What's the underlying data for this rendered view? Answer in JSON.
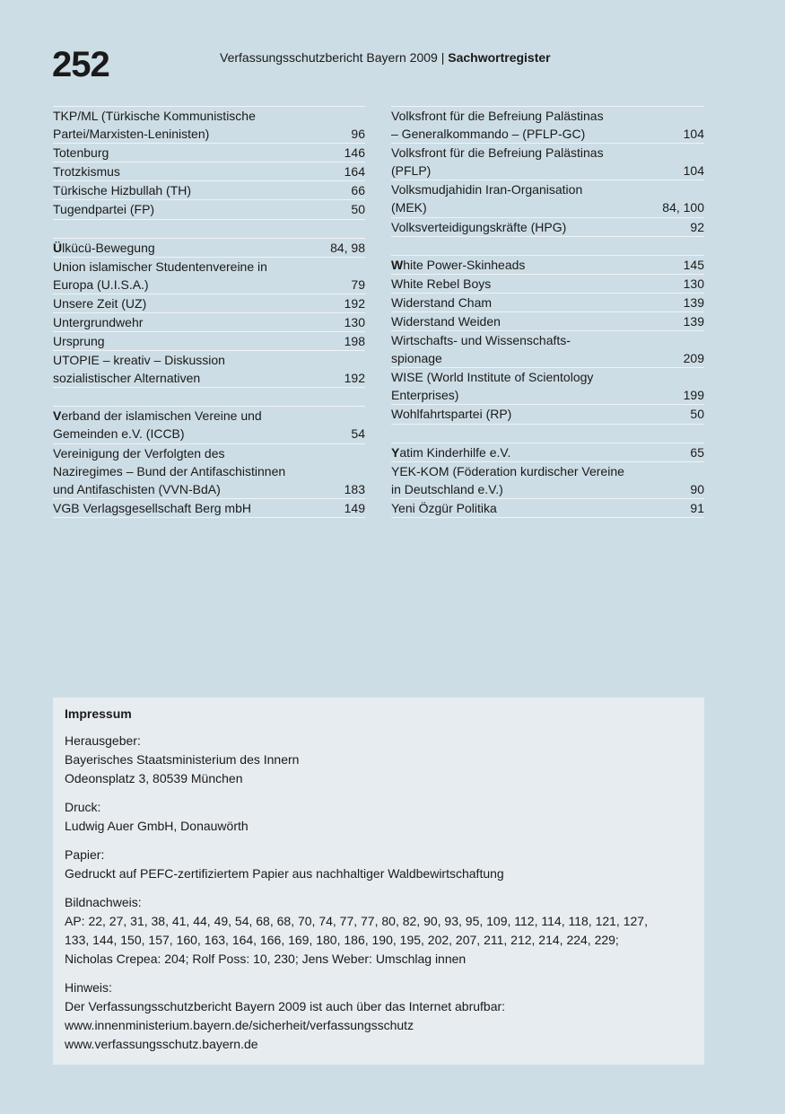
{
  "header": {
    "page_number": "252",
    "title": "Verfassungsschutzbericht Bayern 2009",
    "separator": " | ",
    "section": "Sachwortregister"
  },
  "left_column": [
    {
      "lines": [
        "TKP/ML (Türkische Kommunistische",
        "Partei/Marxisten-Leninisten)"
      ],
      "pages": "96"
    },
    {
      "lines": [
        "Totenburg"
      ],
      "pages": "146"
    },
    {
      "lines": [
        "Trotzkismus"
      ],
      "pages": "164"
    },
    {
      "lines": [
        "Türkische Hizbullah (TH)"
      ],
      "pages": "66"
    },
    {
      "lines": [
        "Tugendpartei (FP)"
      ],
      "pages": "50"
    },
    {
      "spacer": true
    },
    {
      "lead": "Ü",
      "lines": [
        "lkücü-Bewegung"
      ],
      "pages": "84, 98"
    },
    {
      "lines": [
        "Union islamischer Studentenvereine in",
        "Europa (U.I.S.A.)"
      ],
      "pages": "79"
    },
    {
      "lines": [
        "Unsere Zeit (UZ)"
      ],
      "pages": "192"
    },
    {
      "lines": [
        "Untergrundwehr"
      ],
      "pages": "130"
    },
    {
      "lines": [
        "Ursprung"
      ],
      "pages": "198"
    },
    {
      "lines": [
        "UTOPIE – kreativ – Diskussion",
        "sozialistischer Alternativen"
      ],
      "pages": "192"
    },
    {
      "spacer": true
    },
    {
      "lead": "V",
      "lines": [
        "erband der islamischen Vereine und",
        "Gemeinden e.V. (ICCB)"
      ],
      "pages": "54"
    },
    {
      "lines": [
        "Vereinigung der Verfolgten des",
        "Naziregimes – Bund der Antifaschistinnen",
        "und Antifaschisten (VVN-BdA)"
      ],
      "pages": "183"
    },
    {
      "lines": [
        "VGB Verlagsgesellschaft Berg mbH"
      ],
      "pages": "149"
    }
  ],
  "right_column": [
    {
      "lines": [
        "Volksfront für die Befreiung Palästinas",
        "– Generalkommando – (PFLP-GC)"
      ],
      "pages": "104"
    },
    {
      "lines": [
        "Volksfront für die Befreiung Palästinas",
        "(PFLP)"
      ],
      "pages": "104"
    },
    {
      "lines": [
        "Volksmudjahidin Iran-Organisation",
        "(MEK)"
      ],
      "pages": "84, 100"
    },
    {
      "lines": [
        "Volksverteidigungskräfte (HPG)"
      ],
      "pages": "92"
    },
    {
      "spacer": true
    },
    {
      "lead": "W",
      "lines": [
        "hite Power-Skinheads"
      ],
      "pages": "145"
    },
    {
      "lines": [
        "White Rebel Boys"
      ],
      "pages": "130"
    },
    {
      "lines": [
        "Widerstand Cham"
      ],
      "pages": "139"
    },
    {
      "lines": [
        "Widerstand Weiden"
      ],
      "pages": "139"
    },
    {
      "lines": [
        "Wirtschafts- und Wissenschafts-",
        "spionage"
      ],
      "pages": "209"
    },
    {
      "lines": [
        "WISE (World Institute of Scientology",
        "Enterprises)"
      ],
      "pages": "199"
    },
    {
      "lines": [
        "Wohlfahrtspartei (RP)"
      ],
      "pages": "50"
    },
    {
      "spacer": true
    },
    {
      "lead": "Y",
      "lines": [
        "atim Kinderhilfe e.V."
      ],
      "pages": "65"
    },
    {
      "lines": [
        "YEK-KOM (Föderation kurdischer Vereine",
        "in Deutschland e.V.)"
      ],
      "pages": "90"
    },
    {
      "lines": [
        "Yeni Özgür Politika"
      ],
      "pages": "91"
    }
  ],
  "impressum": {
    "title": "Impressum",
    "sections": [
      {
        "label": "Herausgeber:",
        "lines": [
          "Bayerisches Staatsministerium des Innern",
          "Odeonsplatz 3, 80539 München"
        ]
      },
      {
        "label": "Druck:",
        "lines": [
          "Ludwig Auer GmbH, Donauwörth"
        ]
      },
      {
        "label": "Papier:",
        "lines": [
          "Gedruckt auf PEFC-zertifiziertem Papier aus nachhaltiger Waldbewirtschaftung"
        ]
      },
      {
        "label": "Bildnachweis:",
        "lines": [
          "AP: 22, 27, 31, 38, 41, 44, 49, 54, 68, 68, 70, 74, 77, 77, 80, 82, 90, 93, 95, 109, 112, 114, 118, 121, 127,",
          "133, 144, 150, 157, 160, 163, 164, 166, 169, 180, 186, 190, 195, 202, 207, 211, 212, 214, 224, 229;",
          "Nicholas Crepea: 204; Rolf Poss: 10, 230; Jens Weber: Umschlag innen"
        ]
      },
      {
        "label": "Hinweis:",
        "lines": [
          "Der Verfassungsschutzbericht Bayern 2009 ist auch über das Internet abrufbar:",
          "www.innenministerium.bayern.de/sicherheit/verfassungsschutz",
          "www.verfassungsschutz.bayern.de"
        ]
      }
    ]
  },
  "colors": {
    "background": "#cddde5",
    "impressum_box": "#e7ecf0",
    "rule": "#eef3f6",
    "text": "#1a1a1a"
  }
}
